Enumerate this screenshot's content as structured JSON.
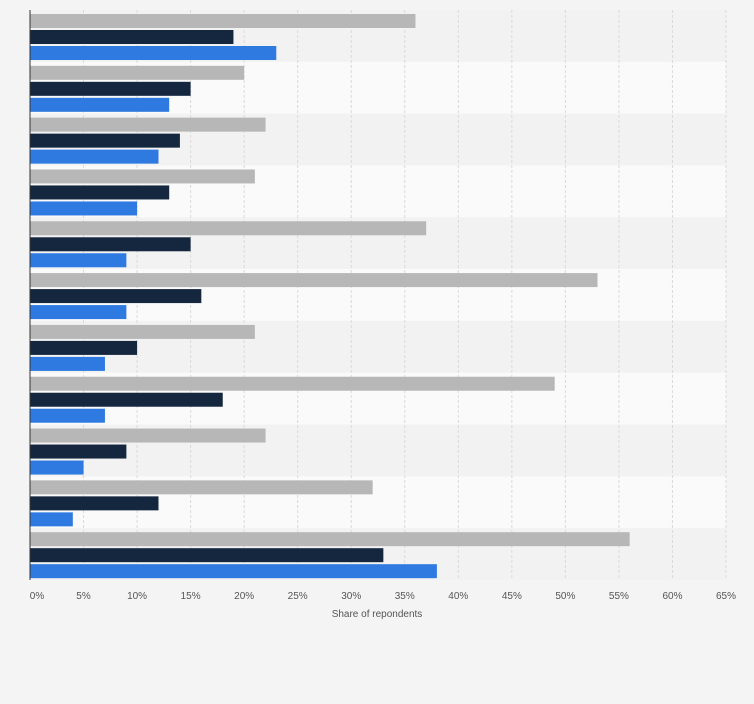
{
  "colors": {
    "background": "#f4f4f4",
    "band_dark": "#f2f2f2",
    "band_light": "#fafafa",
    "grid": "#dadada",
    "axis": "#333333",
    "tick_text": "#555555"
  },
  "chart_data": {
    "type": "bar",
    "orientation": "horizontal",
    "title": "",
    "xlabel": "Share of repondents",
    "ylabel": "",
    "xlim": [
      0,
      65
    ],
    "x_ticks": [
      "0%",
      "5%",
      "10%",
      "15%",
      "20%",
      "25%",
      "30%",
      "35%",
      "40%",
      "45%",
      "50%",
      "55%",
      "60%",
      "65%"
    ],
    "categories": [
      "",
      "",
      "",
      "",
      "",
      "",
      "",
      "",
      "",
      "",
      ""
    ],
    "grid": true,
    "legend": "none",
    "series": [
      {
        "color": "#b7b7b7",
        "values": [
          36,
          20,
          22,
          21,
          37,
          53,
          21,
          49,
          22,
          32,
          56
        ]
      },
      {
        "color": "#14273e",
        "values": [
          19,
          15,
          14,
          13,
          15,
          16,
          10,
          18,
          9,
          12,
          33
        ]
      },
      {
        "color": "#2f7ae0",
        "values": [
          23,
          13,
          12,
          10,
          9,
          9,
          7,
          7,
          5,
          4,
          38
        ]
      }
    ]
  }
}
